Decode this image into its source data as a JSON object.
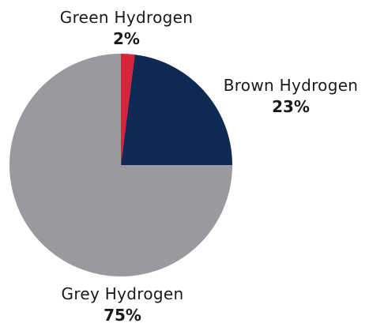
{
  "chart_data": {
    "type": "pie",
    "slices": [
      {
        "label": "Green Hydrogen",
        "value": 2,
        "value_label": "2%",
        "color": "#d7243a"
      },
      {
        "label": "Brown Hydrogen",
        "value": 23,
        "value_label": "23%",
        "color": "#0e2a52"
      },
      {
        "label": "Grey Hydrogen",
        "value": 75,
        "value_label": "75%",
        "color": "#999a9e"
      }
    ],
    "start_angle_deg": 0,
    "direction": "clockwise",
    "background": "#ffffff"
  }
}
